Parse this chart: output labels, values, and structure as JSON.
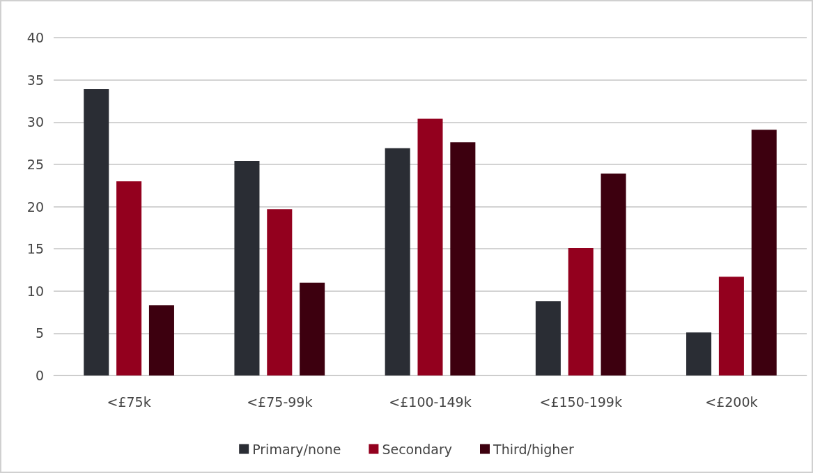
{
  "chart_data": {
    "type": "bar",
    "categories": [
      "<£75k",
      "<£75-99k",
      "<£100-149k",
      "<£150-199k",
      "<£200k"
    ],
    "series": [
      {
        "name": "Primary/none",
        "color": "#2a2d34",
        "values": [
          33.9,
          25.4,
          26.9,
          8.8,
          5.1
        ]
      },
      {
        "name": "Secondary",
        "color": "#93001e",
        "values": [
          23.0,
          19.7,
          30.4,
          15.1,
          11.7
        ]
      },
      {
        "name": "Third/higher",
        "color": "#3d000f",
        "values": [
          8.3,
          11.0,
          27.6,
          23.9,
          29.1
        ]
      }
    ],
    "ylim": [
      0,
      40
    ],
    "yticks": [
      0,
      5,
      10,
      15,
      20,
      25,
      30,
      35,
      40
    ],
    "grid": "y",
    "legend": "bottom"
  }
}
